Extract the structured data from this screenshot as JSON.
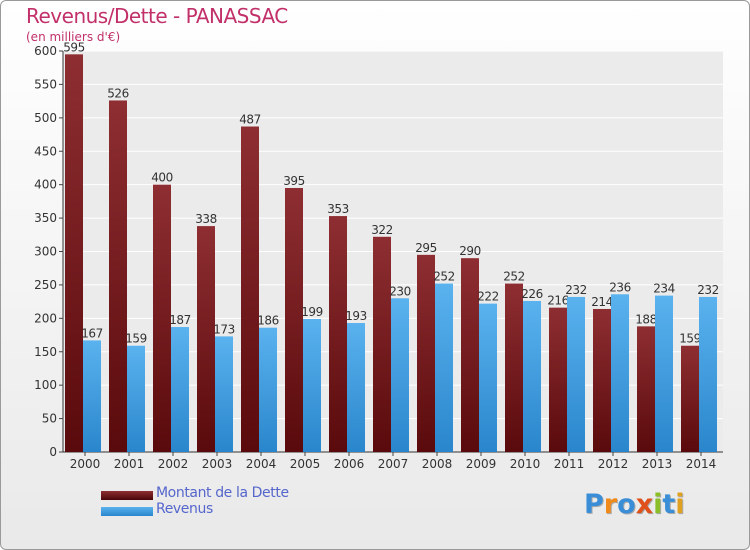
{
  "chart_data": {
    "type": "bar",
    "title": "Revenus/Dette - PANASSAC",
    "subtitle": "(en milliers d'€)",
    "categories": [
      "2000",
      "2001",
      "2002",
      "2003",
      "2004",
      "2005",
      "2006",
      "2007",
      "2008",
      "2009",
      "2010",
      "2011",
      "2012",
      "2013",
      "2014"
    ],
    "series": [
      {
        "name": "Montant de la Dette",
        "color": "#7a1f22",
        "values": [
          595,
          526,
          400,
          338,
          487,
          395,
          353,
          322,
          295,
          290,
          252,
          216,
          214,
          188,
          159
        ]
      },
      {
        "name": "Revenus",
        "color": "#3d9ee0",
        "values": [
          167,
          159,
          187,
          173,
          186,
          199,
          193,
          230,
          252,
          222,
          226,
          232,
          236,
          234,
          232
        ]
      }
    ],
    "ylim": [
      0,
      600
    ],
    "yticks": [
      0,
      50,
      100,
      150,
      200,
      250,
      300,
      350,
      400,
      450,
      500,
      550,
      600
    ],
    "grid": true,
    "legend": "bottom-left"
  },
  "logo": {
    "letters": [
      "P",
      "r",
      "o",
      "x",
      "i",
      "t",
      "i"
    ],
    "colors": [
      "#3a8ed8",
      "#f08a1a",
      "#3a8ed8",
      "#e0501a",
      "#8abf2a",
      "#3a8ed8",
      "#e0a020"
    ]
  }
}
